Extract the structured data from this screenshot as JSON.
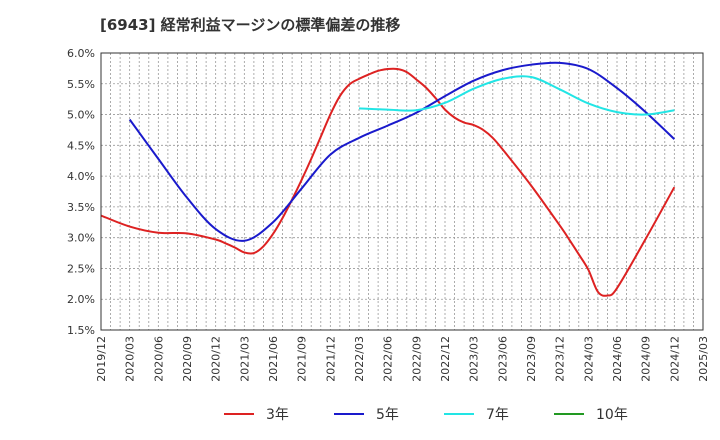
{
  "title": "[6943]  経常利益マージンの標準偏差の推移",
  "chart_data": {
    "type": "line",
    "title": "[6943]  経常利益マージンの標準偏差の推移",
    "xlabel": "",
    "ylabel": "",
    "ylim": [
      1.5,
      6.0
    ],
    "grid": true,
    "legend_position": "bottom",
    "x_ticks": [
      "2019/12",
      "2020/03",
      "2020/06",
      "2020/09",
      "2020/12",
      "2021/03",
      "2021/06",
      "2021/09",
      "2021/12",
      "2022/03",
      "2022/06",
      "2022/09",
      "2022/12",
      "2023/03",
      "2023/06",
      "2023/09",
      "2023/12",
      "2024/03",
      "2024/06",
      "2024/09",
      "2024/12",
      "2025/03"
    ],
    "y_ticks": [
      "1.5%",
      "2.0%",
      "2.5%",
      "3.0%",
      "3.5%",
      "4.0%",
      "4.5%",
      "5.0%",
      "5.5%",
      "6.0%"
    ],
    "series": [
      {
        "name": "3年",
        "color": "#dd2222",
        "x": [
          "2019/12",
          "2020/03",
          "2020/06",
          "2020/09",
          "2020/12",
          "2021/01",
          "2021/02",
          "2021/03",
          "2021/04",
          "2021/05",
          "2021/06",
          "2021/07",
          "2021/08",
          "2021/09",
          "2021/10",
          "2021/11",
          "2021/12",
          "2022/01",
          "2022/02",
          "2022/03",
          "2022/04",
          "2022/05",
          "2022/06",
          "2022/07",
          "2022/08",
          "2022/09",
          "2022/10",
          "2022/11",
          "2022/12",
          "2023/01",
          "2023/02",
          "2023/03",
          "2023/04",
          "2023/05",
          "2023/06",
          "2023/09",
          "2023/12",
          "2024/01",
          "2024/02",
          "2024/03",
          "2024/04",
          "2024/05",
          "2024/06",
          "2024/09",
          "2024/12"
        ],
        "y": [
          3.36,
          3.18,
          3.08,
          3.07,
          2.97,
          2.91,
          2.84,
          2.76,
          2.75,
          2.86,
          3.06,
          3.32,
          3.62,
          3.94,
          4.28,
          4.64,
          5.0,
          5.3,
          5.49,
          5.58,
          5.65,
          5.71,
          5.74,
          5.74,
          5.69,
          5.57,
          5.44,
          5.27,
          5.08,
          4.95,
          4.87,
          4.83,
          4.75,
          4.62,
          4.44,
          3.85,
          3.2,
          2.97,
          2.73,
          2.48,
          2.12,
          2.06,
          2.18,
          2.98,
          3.82
        ]
      },
      {
        "name": "5年",
        "color": "#1a1acc",
        "x": [
          "2020/03",
          "2020/06",
          "2020/09",
          "2020/12",
          "2021/03",
          "2021/06",
          "2021/09",
          "2021/12",
          "2022/03",
          "2022/06",
          "2022/09",
          "2022/12",
          "2023/03",
          "2023/06",
          "2023/09",
          "2023/12",
          "2024/03",
          "2024/06",
          "2024/09",
          "2024/12"
        ],
        "y": [
          4.92,
          4.28,
          3.65,
          3.14,
          2.95,
          3.25,
          3.8,
          4.35,
          4.62,
          4.82,
          5.03,
          5.3,
          5.55,
          5.72,
          5.81,
          5.84,
          5.74,
          5.43,
          5.04,
          4.6
        ]
      },
      {
        "name": "7年",
        "color": "#22e5e5",
        "x": [
          "2022/03",
          "2022/06",
          "2022/09",
          "2022/12",
          "2023/03",
          "2023/06",
          "2023/09",
          "2023/12",
          "2024/03",
          "2024/06",
          "2024/09",
          "2024/12"
        ],
        "y": [
          5.1,
          5.08,
          5.07,
          5.19,
          5.42,
          5.58,
          5.61,
          5.41,
          5.18,
          5.04,
          5.0,
          5.07
        ]
      },
      {
        "name": "10年",
        "color": "#229922",
        "x": [],
        "y": []
      }
    ]
  }
}
